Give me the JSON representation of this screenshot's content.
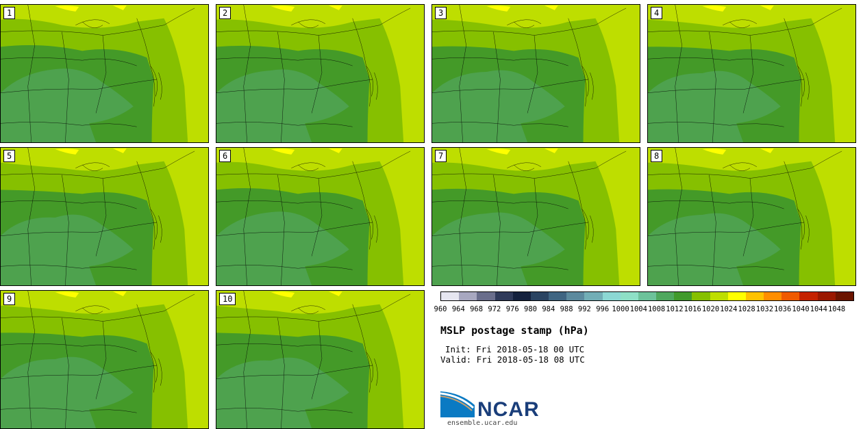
{
  "panels": [
    {
      "label": "1"
    },
    {
      "label": "2"
    },
    {
      "label": "3"
    },
    {
      "label": "4"
    },
    {
      "label": "5"
    },
    {
      "label": "6"
    },
    {
      "label": "7"
    },
    {
      "label": "8"
    },
    {
      "label": "9"
    },
    {
      "label": "10"
    }
  ],
  "colorbar": {
    "labels": [
      "960",
      "964",
      "968",
      "972",
      "976",
      "980",
      "984",
      "988",
      "992",
      "996",
      "1000",
      "1004",
      "1008",
      "1012",
      "1016",
      "1020",
      "1024",
      "1028",
      "1032",
      "1036",
      "1040",
      "1044",
      "1048"
    ],
    "colors": [
      "#e6e6f0",
      "#a8a8c0",
      "#6a6e8c",
      "#2f3a5a",
      "#14213e",
      "#2a4462",
      "#3f6582",
      "#5c8a9e",
      "#72aeb6",
      "#8cd8d4",
      "#8ee0c6",
      "#6cc29a",
      "#4fa85e",
      "#419a2c",
      "#86c000",
      "#bede00",
      "#ffff00",
      "#ffc200",
      "#ff8e00",
      "#f05a00",
      "#c52200",
      "#9a1800",
      "#6b1400"
    ]
  },
  "map_colors": {
    "low": "#4ea24e",
    "mid": "#449a28",
    "high1": "#86c000",
    "high2": "#bede00",
    "high3": "#ffff00"
  },
  "title": "MSLP postage stamp (hPa)",
  "init": "Init: Fri 2018-05-18 00 UTC",
  "valid": "Valid: Fri 2018-05-18 08 UTC",
  "logo": {
    "text": "NCAR",
    "site": "ensemble.ucar.edu"
  }
}
